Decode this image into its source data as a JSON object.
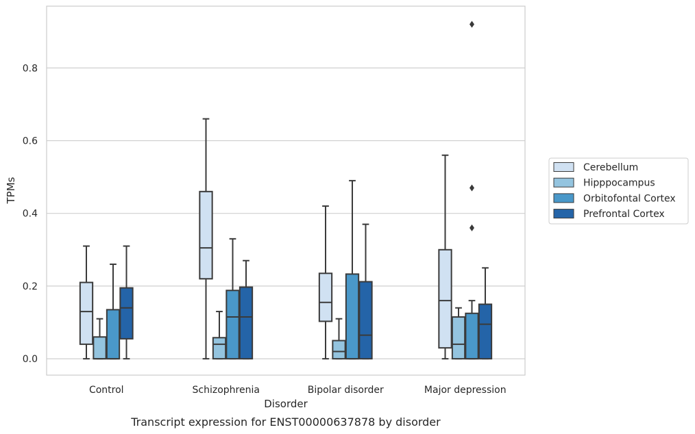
{
  "chart_data": {
    "type": "box",
    "caption": "Transcript expression for ENST00000637878 by disorder",
    "xlabel": "Disorder",
    "ylabel": "TPMs",
    "ylim": [
      -0.045,
      0.97
    ],
    "yticks": [
      "0.0",
      "0.2",
      "0.4",
      "0.6",
      "0.8"
    ],
    "categories": [
      "Control",
      "Schizophrenia",
      "Bipolar disorder",
      "Major depression"
    ],
    "grid": "horizontal",
    "legend_position": "right",
    "colors": {
      "Cerebellum": "#d0e1f2",
      "Hipppocampus": "#94c4df",
      "Orbitofontal Cortex": "#4a98c9",
      "Prefrontal Cortex": "#2464a8",
      "line": "#3a3a3a",
      "grid": "#cfcfcf"
    },
    "series": [
      {
        "name": "Cerebellum",
        "boxes": [
          {
            "whislo": 0.0,
            "q1": 0.04,
            "med": 0.13,
            "q3": 0.21,
            "whishi": 0.31,
            "fliers": []
          },
          {
            "whislo": 0.0,
            "q1": 0.22,
            "med": 0.305,
            "q3": 0.46,
            "whishi": 0.66,
            "fliers": []
          },
          {
            "whislo": 0.0,
            "q1": 0.103,
            "med": 0.155,
            "q3": 0.235,
            "whishi": 0.42,
            "fliers": []
          },
          {
            "whislo": 0.0,
            "q1": 0.03,
            "med": 0.16,
            "q3": 0.3,
            "whishi": 0.56,
            "fliers": []
          }
        ]
      },
      {
        "name": "Hipppocampus",
        "boxes": [
          {
            "whislo": 0.0,
            "q1": 0.0,
            "med": 0.0,
            "q3": 0.06,
            "whishi": 0.11,
            "fliers": []
          },
          {
            "whislo": 0.0,
            "q1": 0.0,
            "med": 0.04,
            "q3": 0.058,
            "whishi": 0.13,
            "fliers": []
          },
          {
            "whislo": 0.0,
            "q1": 0.0,
            "med": 0.02,
            "q3": 0.05,
            "whishi": 0.11,
            "fliers": []
          },
          {
            "whislo": 0.0,
            "q1": 0.0,
            "med": 0.04,
            "q3": 0.115,
            "whishi": 0.14,
            "fliers": []
          }
        ]
      },
      {
        "name": "Orbitofontal Cortex",
        "boxes": [
          {
            "whislo": 0.0,
            "q1": 0.0,
            "med": 0.0,
            "q3": 0.135,
            "whishi": 0.26,
            "fliers": []
          },
          {
            "whislo": 0.0,
            "q1": 0.0,
            "med": 0.115,
            "q3": 0.188,
            "whishi": 0.33,
            "fliers": []
          },
          {
            "whislo": 0.0,
            "q1": 0.0,
            "med": 0.0,
            "q3": 0.233,
            "whishi": 0.49,
            "fliers": []
          },
          {
            "whislo": 0.0,
            "q1": 0.0,
            "med": 0.0,
            "q3": 0.125,
            "whishi": 0.16,
            "fliers": [
              0.36,
              0.47,
              0.92
            ]
          }
        ]
      },
      {
        "name": "Prefrontal Cortex",
        "boxes": [
          {
            "whislo": 0.0,
            "q1": 0.055,
            "med": 0.14,
            "q3": 0.195,
            "whishi": 0.31,
            "fliers": []
          },
          {
            "whislo": 0.0,
            "q1": 0.0,
            "med": 0.115,
            "q3": 0.197,
            "whishi": 0.27,
            "fliers": []
          },
          {
            "whislo": 0.0,
            "q1": 0.0,
            "med": 0.065,
            "q3": 0.212,
            "whishi": 0.37,
            "fliers": []
          },
          {
            "whislo": 0.0,
            "q1": 0.0,
            "med": 0.095,
            "q3": 0.15,
            "whishi": 0.25,
            "fliers": []
          }
        ]
      }
    ]
  }
}
